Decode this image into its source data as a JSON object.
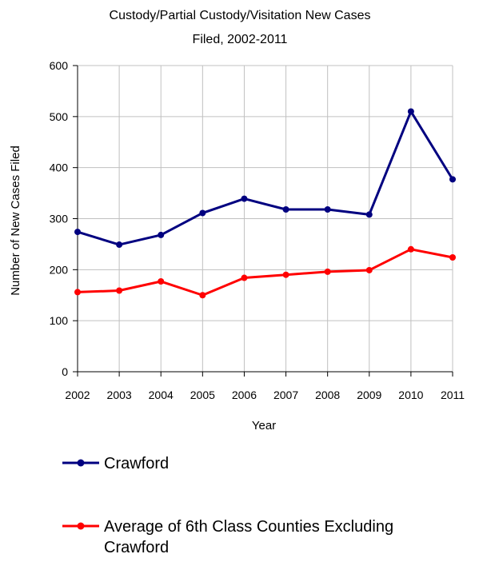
{
  "chart_data": {
    "type": "line",
    "title_lines": [
      "Custody/Partial Custody/Visitation New  Cases",
      "Filed, 2002-2011"
    ],
    "xlabel": "Year",
    "ylabel": "Number of New Cases Filed",
    "categories": [
      "2002",
      "2003",
      "2004",
      "2005",
      "2006",
      "2007",
      "2008",
      "2009",
      "2010",
      "2011"
    ],
    "y_ticks": [
      "0",
      "100",
      "200",
      "300",
      "400",
      "500",
      "600"
    ],
    "ylim": [
      0,
      600
    ],
    "grid": true,
    "legend_position": "bottom",
    "series": [
      {
        "name": "Crawford",
        "name_lines": [
          "Crawford"
        ],
        "color": "#000080",
        "values": [
          274,
          249,
          268,
          311,
          339,
          318,
          318,
          308,
          510,
          377
        ]
      },
      {
        "name": "Average of 6th Class Counties Excluding Crawford",
        "name_lines": [
          "Average of 6th Class Counties Excluding",
          "Crawford"
        ],
        "color": "#ff0000",
        "values": [
          156,
          159,
          177,
          150,
          184,
          190,
          196,
          199,
          240,
          224
        ]
      }
    ]
  }
}
